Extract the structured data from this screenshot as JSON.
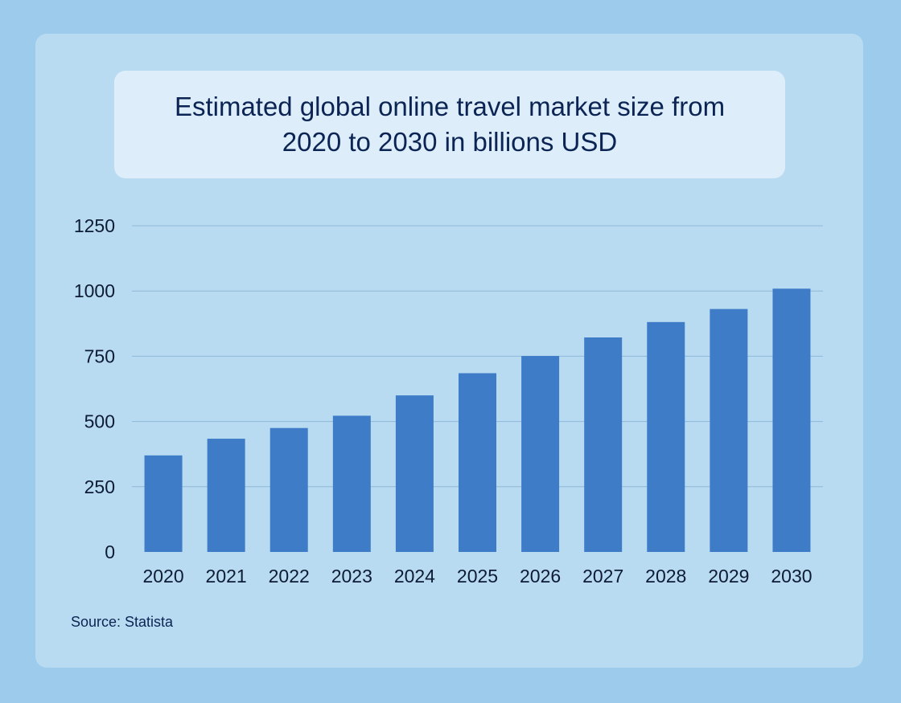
{
  "colors": {
    "page_background": "#9ccbeb",
    "card_background": "#b8dbf1",
    "title_background": "#ddeefa",
    "bar": "#3f7cc8",
    "gridline": "#8fb8d8",
    "text": "#0b2454"
  },
  "chart_data": {
    "type": "bar",
    "title": "Estimated global online travel market size from 2020 to 2030 in billions USD",
    "xlabel": "",
    "ylabel": "",
    "categories": [
      "2020",
      "2021",
      "2022",
      "2023",
      "2024",
      "2025",
      "2026",
      "2027",
      "2028",
      "2029",
      "2030"
    ],
    "values": [
      370,
      434,
      475,
      522,
      600,
      685,
      751,
      822,
      881,
      931,
      1009
    ],
    "ylim": [
      0,
      1250
    ],
    "yticks": [
      "0",
      "250",
      "500",
      "750",
      "1000",
      "1250"
    ],
    "grid": true,
    "legend": "none"
  },
  "source": "Source: Statista"
}
